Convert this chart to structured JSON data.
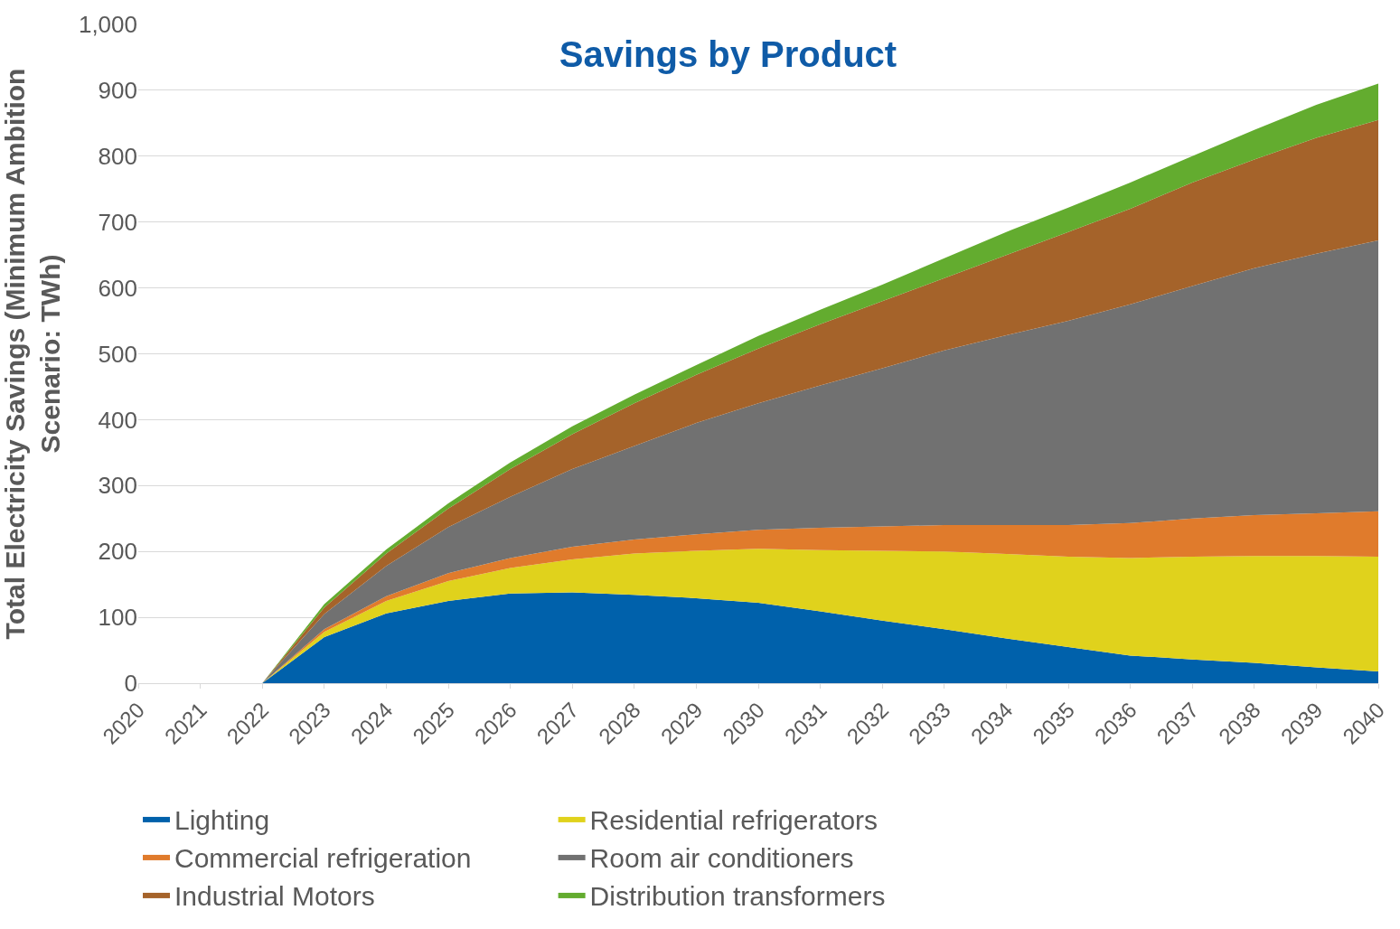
{
  "chart_data": {
    "type": "area",
    "stacked": true,
    "title": "Savings by Product",
    "ylabel": "Total Electricity Savings (Minimum Ambition Scenario: TWh)",
    "categories": [
      "2020",
      "2021",
      "2022",
      "2023",
      "2024",
      "2025",
      "2026",
      "2027",
      "2028",
      "2029",
      "2030",
      "2031",
      "2032",
      "2033",
      "2034",
      "2035",
      "2036",
      "2037",
      "2038",
      "2039",
      "2040"
    ],
    "series": [
      {
        "name": "Lighting",
        "color": "#0061ab",
        "values": [
          0,
          0,
          0,
          70,
          106,
          125,
          136,
          138,
          134,
          129,
          122,
          109,
          95,
          82,
          68,
          55,
          42,
          36,
          31,
          24,
          18
        ]
      },
      {
        "name": "Residential refrigerators",
        "color": "#e0d21c",
        "values": [
          0,
          0,
          0,
          8,
          19,
          30,
          39,
          50,
          63,
          72,
          82,
          93,
          106,
          118,
          128,
          137,
          148,
          156,
          162,
          169,
          174
        ]
      },
      {
        "name": "Commercial refrigeration",
        "color": "#e07b2c",
        "values": [
          0,
          0,
          0,
          4,
          7,
          12,
          15,
          19,
          21,
          25,
          29,
          34,
          37,
          40,
          44,
          48,
          53,
          58,
          62,
          65,
          69
        ]
      },
      {
        "name": "Room air conditioners",
        "color": "#717171",
        "values": [
          0,
          0,
          0,
          23,
          46,
          70,
          93,
          118,
          142,
          169,
          192,
          216,
          240,
          265,
          288,
          310,
          332,
          353,
          375,
          394,
          411
        ]
      },
      {
        "name": "Industrial Motors",
        "color": "#a5632a",
        "values": [
          0,
          0,
          0,
          10,
          19,
          28,
          42,
          53,
          65,
          73,
          83,
          93,
          102,
          110,
          122,
          135,
          145,
          157,
          165,
          176,
          183
        ]
      },
      {
        "name": "Distribution transformers",
        "color": "#63ac2f",
        "values": [
          0,
          0,
          0,
          5,
          6,
          8,
          10,
          12,
          13,
          15,
          19,
          22,
          25,
          30,
          35,
          37,
          40,
          40,
          45,
          50,
          55
        ]
      }
    ],
    "ylim": [
      0,
      1000
    ],
    "yticks": [
      0,
      100,
      200,
      300,
      400,
      500,
      600,
      700,
      800,
      900,
      {
        "value": 1000,
        "label": "1,000"
      }
    ],
    "grid": "y",
    "legend": "bottom"
  }
}
